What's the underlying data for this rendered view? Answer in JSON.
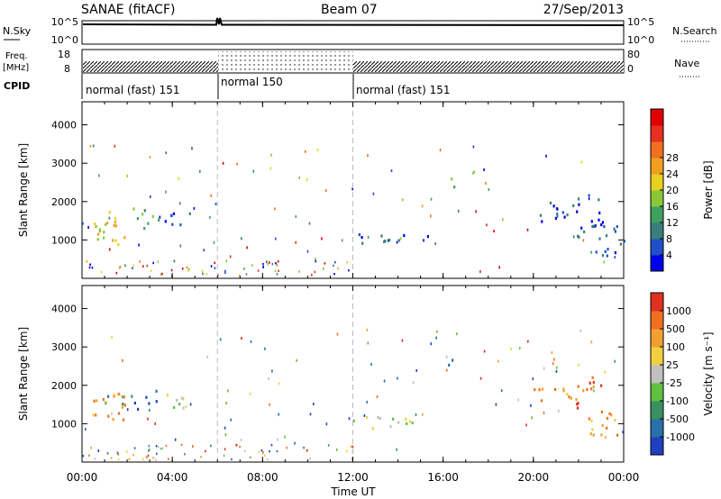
{
  "header": {
    "title": "SANAE (fitACF)",
    "beam": "Beam 07",
    "date": "27/Sep/2013"
  },
  "top_panels": {
    "nsky": {
      "label": "N.Sky",
      "tick_top": "10^5",
      "tick_bottom": "10^0"
    },
    "nsearch": {
      "label": "N.Search",
      "tick_top": "10^5",
      "tick_bottom": "10^0"
    },
    "freq": {
      "label_line1": "Freq.",
      "label_line2": "[MHz]",
      "tick_top": "18",
      "tick_bottom": "8"
    },
    "nave": {
      "label": "Nave",
      "tick_top": "80",
      "tick_bottom": "0"
    },
    "cpid": {
      "label": "CPID",
      "segments": [
        {
          "text": "normal (fast) 151",
          "start_h": 0
        },
        {
          "text": "normal 150",
          "start_h": 6
        },
        {
          "text": "normal (fast) 151",
          "start_h": 12
        }
      ]
    }
  },
  "chart_data": [
    {
      "type": "heatmap",
      "name": "power",
      "ylabel": "Slant Range [km]",
      "ylim": [
        0,
        4600
      ],
      "yticks": [
        1000,
        2000,
        3000,
        4000
      ],
      "xlim": [
        0,
        24
      ],
      "colorbar": {
        "label": "Power [dB]",
        "ticks": [
          "4",
          "8",
          "12",
          "16",
          "20",
          "24",
          "28"
        ],
        "colors": [
          "#0000e6",
          "#2050c8",
          "#3a7e7a",
          "#40a060",
          "#88c838",
          "#e6d020",
          "#f0a020",
          "#f07020",
          "#e63020",
          "#e00000"
        ]
      },
      "blobs": [
        {
          "t0": 0.2,
          "t1": 1.9,
          "r0": 900,
          "r1": 1900,
          "level": 5
        },
        {
          "t0": 2.2,
          "t1": 3.4,
          "r0": 1300,
          "r1": 1900,
          "level": 3
        },
        {
          "t0": 3.3,
          "t1": 5.0,
          "r0": 1400,
          "r1": 1800,
          "level": 1
        },
        {
          "t0": 12.0,
          "t1": 15.5,
          "r0": 900,
          "r1": 1200,
          "level": 1
        },
        {
          "t0": 16.1,
          "t1": 16.6,
          "r0": 2400,
          "r1": 2800,
          "level": 3
        },
        {
          "t0": 20.0,
          "t1": 21.8,
          "r0": 1400,
          "r1": 2000,
          "level": 1
        },
        {
          "t0": 21.8,
          "t1": 23.0,
          "r0": 1000,
          "r1": 2200,
          "level": 1
        },
        {
          "t0": 22.6,
          "t1": 24.0,
          "r0": 500,
          "r1": 1500,
          "level": 1
        }
      ]
    },
    {
      "type": "heatmap",
      "name": "velocity",
      "ylabel": "Slant Range [km]",
      "ylim": [
        0,
        4600
      ],
      "yticks": [
        1000,
        2000,
        3000,
        4000
      ],
      "xlim": [
        0,
        24
      ],
      "colorbar": {
        "label": "Velocity [m s⁻¹]",
        "ticks": [
          "1000",
          "500",
          "100",
          "25",
          "-25",
          "-100",
          "-500",
          "-1000"
        ],
        "colors": [
          "#2040c0",
          "#2a70a8",
          "#3a9060",
          "#60c040",
          "#c0c0c0",
          "#f0d040",
          "#f0a030",
          "#f07020",
          "#e03020"
        ]
      },
      "blobs": [
        {
          "t0": 0.2,
          "t1": 2.0,
          "r0": 1000,
          "r1": 1900,
          "level": 6
        },
        {
          "t0": 1.0,
          "t1": 2.2,
          "r0": 1500,
          "r1": 1900,
          "level": 2
        },
        {
          "t0": 2.3,
          "t1": 3.4,
          "r0": 1400,
          "r1": 1900,
          "level": 1
        },
        {
          "t0": 3.4,
          "t1": 5.0,
          "r0": 1400,
          "r1": 1800,
          "level": 4
        },
        {
          "t0": 12.0,
          "t1": 15.5,
          "r0": 900,
          "r1": 1200,
          "level": 4
        },
        {
          "t0": 16.1,
          "t1": 16.6,
          "r0": 2400,
          "r1": 2800,
          "level": 2
        },
        {
          "t0": 20.0,
          "t1": 21.8,
          "r0": 1500,
          "r1": 2000,
          "level": 6
        },
        {
          "t0": 21.8,
          "t1": 23.0,
          "r0": 1300,
          "r1": 2300,
          "level": 7
        },
        {
          "t0": 22.4,
          "t1": 24.0,
          "r0": 600,
          "r1": 1400,
          "level": 6
        }
      ]
    }
  ],
  "x_axis": {
    "label": "Time UT",
    "ticks": [
      "00:00",
      "04:00",
      "08:00",
      "12:00",
      "16:00",
      "20:00",
      "00:00"
    ]
  }
}
